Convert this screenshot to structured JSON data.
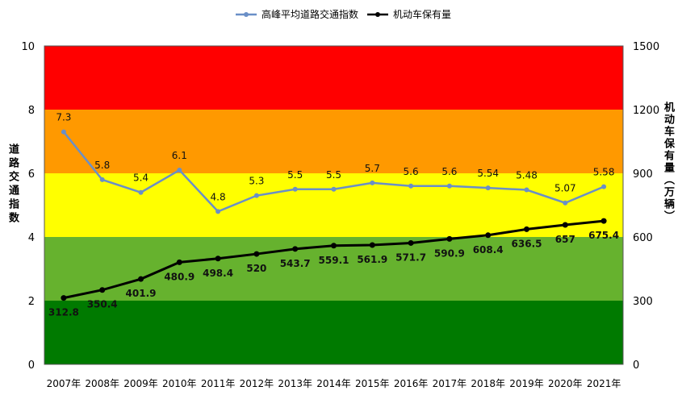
{
  "chart_data": {
    "type": "line",
    "categories": [
      "2007年",
      "2008年",
      "2009年",
      "2010年",
      "2011年",
      "2012年",
      "2013年",
      "2014年",
      "2015年",
      "2016年",
      "2017年",
      "2018年",
      "2019年",
      "2020年",
      "2021年"
    ],
    "series": [
      {
        "name": "高峰平均道路交通指数",
        "axis": "left",
        "color": "#6a8fc7",
        "values": [
          7.3,
          5.8,
          5.4,
          6.1,
          4.8,
          5.3,
          5.5,
          5.5,
          5.7,
          5.6,
          5.6,
          5.54,
          5.48,
          5.07,
          5.58
        ],
        "labels": [
          "7.3",
          "5.8",
          "5.4",
          "6.1",
          "4.8",
          "5.3",
          "5.5",
          "5.5",
          "5.7",
          "5.6",
          "5.6",
          "5.54",
          "5.48",
          "5.07",
          "5.58"
        ]
      },
      {
        "name": "机动车保有量",
        "axis": "right",
        "color": "#000000",
        "values": [
          312.8,
          350.4,
          401.9,
          480.9,
          498.4,
          520,
          543.7,
          559.1,
          561.9,
          571.7,
          590.9,
          608.4,
          636.5,
          657,
          675.4
        ],
        "labels": [
          "312.8",
          "350.4",
          "401.9",
          "480.9",
          "498.4",
          "520",
          "543.7",
          "559.1",
          "561.9",
          "571.7",
          "590.9",
          "608.4",
          "636.5",
          "657",
          "675.4"
        ]
      }
    ],
    "ylabel_left": "道路交通指数",
    "ylabel_right": "机动车保有量（万辆）",
    "ylim_left": [
      0,
      10
    ],
    "ylim_right": [
      0,
      1500
    ],
    "yticks_left": [
      "0",
      "2",
      "4",
      "6",
      "8",
      "10"
    ],
    "yticks_right": [
      "0",
      "300",
      "600",
      "900",
      "1200",
      "1500"
    ],
    "bands": [
      {
        "from": 0,
        "to": 2,
        "color": "#007a00"
      },
      {
        "from": 2,
        "to": 4,
        "color": "#66b22e"
      },
      {
        "from": 4,
        "to": 6,
        "color": "#ffff00"
      },
      {
        "from": 6,
        "to": 8,
        "color": "#ff9900"
      },
      {
        "from": 8,
        "to": 10,
        "color": "#ff0000"
      }
    ],
    "legend_position": "top",
    "grid": false
  }
}
